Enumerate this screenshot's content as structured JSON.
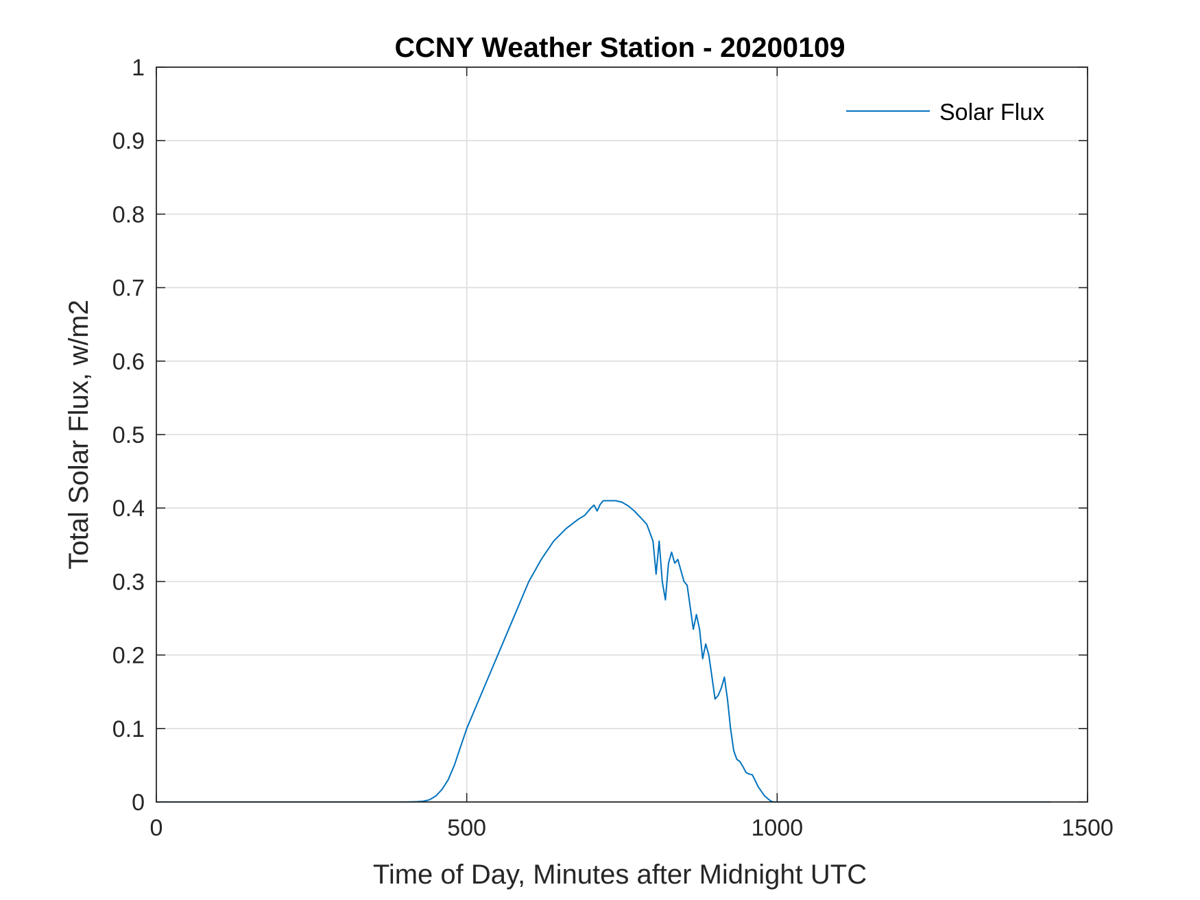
{
  "chart_data": {
    "type": "line",
    "title": "CCNY Weather Station - 20200109",
    "xlabel": "Time of Day, Minutes after Midnight UTC",
    "ylabel": "Total Solar Flux, w/m2",
    "xlim": [
      0,
      1500
    ],
    "ylim": [
      0,
      1
    ],
    "xticks": [
      0,
      500,
      1000,
      1500
    ],
    "xtick_labels": [
      "0",
      "500",
      "1000",
      "1500"
    ],
    "yticks": [
      0,
      0.1,
      0.2,
      0.3,
      0.4,
      0.5,
      0.6,
      0.7,
      0.8,
      0.9,
      1
    ],
    "ytick_labels": [
      "0",
      "0.1",
      "0.2",
      "0.3",
      "0.4",
      "0.5",
      "0.6",
      "0.7",
      "0.8",
      "0.9",
      "1"
    ],
    "grid": true,
    "legend_position": "top-right",
    "series": [
      {
        "name": "Solar Flux",
        "color": "#0072BD",
        "x": [
          0,
          100,
          200,
          300,
          400,
          420,
          430,
          440,
          450,
          460,
          470,
          480,
          490,
          500,
          520,
          540,
          560,
          580,
          600,
          620,
          640,
          660,
          680,
          690,
          700,
          705,
          710,
          715,
          720,
          730,
          740,
          750,
          760,
          770,
          780,
          790,
          800,
          805,
          810,
          815,
          820,
          825,
          830,
          835,
          840,
          845,
          850,
          855,
          860,
          865,
          870,
          875,
          880,
          885,
          890,
          895,
          900,
          905,
          910,
          915,
          920,
          925,
          930,
          935,
          940,
          945,
          950,
          955,
          960,
          970,
          980,
          990,
          995,
          1000,
          1010,
          1020,
          1100,
          1200,
          1300,
          1440
        ],
        "values": [
          0,
          0,
          0,
          0,
          0,
          0.0005,
          0.001,
          0.003,
          0.008,
          0.017,
          0.03,
          0.05,
          0.075,
          0.1,
          0.14,
          0.18,
          0.22,
          0.26,
          0.3,
          0.33,
          0.355,
          0.372,
          0.385,
          0.39,
          0.4,
          0.404,
          0.396,
          0.405,
          0.41,
          0.41,
          0.41,
          0.408,
          0.403,
          0.396,
          0.387,
          0.378,
          0.355,
          0.31,
          0.355,
          0.3,
          0.275,
          0.325,
          0.34,
          0.325,
          0.33,
          0.315,
          0.3,
          0.295,
          0.265,
          0.235,
          0.255,
          0.235,
          0.195,
          0.215,
          0.2,
          0.17,
          0.14,
          0.145,
          0.155,
          0.17,
          0.14,
          0.1,
          0.07,
          0.058,
          0.055,
          0.048,
          0.04,
          0.038,
          0.037,
          0.02,
          0.008,
          0.001,
          0.0,
          0.0,
          0.0,
          0.0,
          0,
          0,
          0,
          0
        ]
      }
    ]
  }
}
